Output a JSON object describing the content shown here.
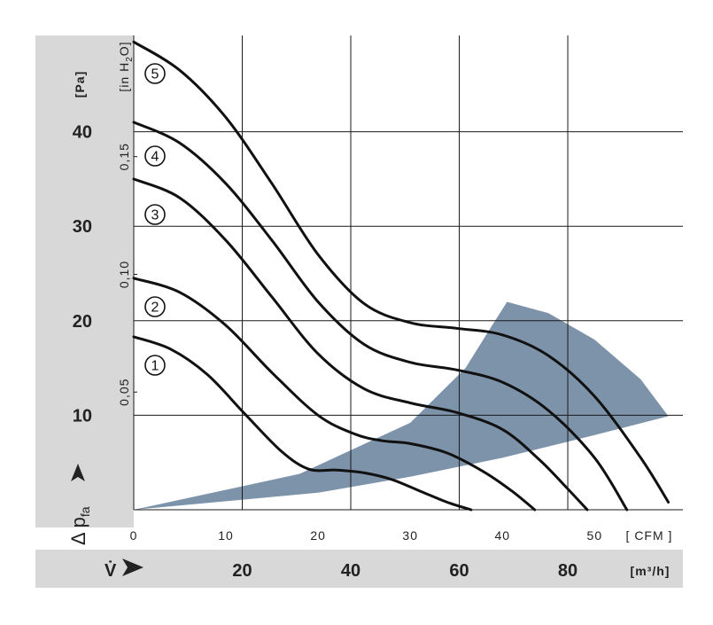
{
  "chart_data": {
    "type": "line",
    "title": "",
    "y_axis_pa": {
      "unit": "[Pa]",
      "ticks": [
        "10",
        "20",
        "30",
        "40"
      ],
      "range": [
        0,
        50
      ],
      "label_symbol": "Δ p",
      "label_subscript": "fa"
    },
    "y_axis_inh2o": {
      "unit_prefix": "[in H",
      "unit_sub": "2",
      "unit_suffix": "O]",
      "ticks": [
        "0,05",
        "0,10",
        "0,15"
      ]
    },
    "x_axis_cfm": {
      "unit": "[ CFM ]",
      "ticks": [
        "0",
        "10",
        "20",
        "30",
        "40",
        "50"
      ],
      "range": [
        0,
        59
      ]
    },
    "x_axis_m3h": {
      "symbol": "V̇",
      "unit": "[m³/h]",
      "ticks": [
        "20",
        "40",
        "60",
        "80"
      ],
      "range": [
        0,
        100
      ]
    },
    "grid": true,
    "shaded_region": {
      "color": "#7d93aa",
      "upper_boundary": [
        [
          0,
          0
        ],
        [
          18,
          3.8
        ],
        [
          30,
          9.2
        ],
        [
          36,
          15.0
        ],
        [
          39,
          19.7
        ],
        [
          40.5,
          22.0
        ],
        [
          45,
          20.8
        ],
        [
          50,
          18.0
        ],
        [
          55,
          13.8
        ],
        [
          58,
          9.9
        ]
      ],
      "lower_boundary": [
        [
          58,
          9.9
        ],
        [
          50,
          7.9
        ],
        [
          40,
          5.5
        ],
        [
          30,
          3.5
        ],
        [
          20,
          1.8
        ],
        [
          0,
          0
        ]
      ]
    },
    "series": [
      {
        "label": "1",
        "line_color": "#111111",
        "points": [
          [
            0,
            18.3
          ],
          [
            4,
            17.0
          ],
          [
            8,
            14.3
          ],
          [
            12,
            10.2
          ],
          [
            16,
            6.2
          ],
          [
            19,
            4.3
          ],
          [
            22,
            4.2
          ],
          [
            25,
            3.9
          ],
          [
            28,
            3.2
          ],
          [
            31,
            2.0
          ],
          [
            34,
            0.8
          ],
          [
            36.6,
            0.0
          ]
        ]
      },
      {
        "label": "2",
        "line_color": "#111111",
        "points": [
          [
            0,
            24.5
          ],
          [
            5,
            23.0
          ],
          [
            10,
            19.5
          ],
          [
            15,
            14.5
          ],
          [
            20,
            10.0
          ],
          [
            24,
            8.0
          ],
          [
            27,
            7.3
          ],
          [
            30,
            7.0
          ],
          [
            34,
            6.0
          ],
          [
            38,
            4.0
          ],
          [
            41,
            2.0
          ],
          [
            43.5,
            0.0
          ]
        ]
      },
      {
        "label": "3",
        "line_color": "#111111",
        "points": [
          [
            0,
            35.0
          ],
          [
            5,
            33.0
          ],
          [
            10,
            28.5
          ],
          [
            15,
            22.5
          ],
          [
            20,
            16.5
          ],
          [
            25,
            12.8
          ],
          [
            30,
            11.3
          ],
          [
            35,
            10.3
          ],
          [
            40,
            8.5
          ],
          [
            44,
            5.3
          ],
          [
            47,
            2.3
          ],
          [
            49.2,
            0.0
          ]
        ]
      },
      {
        "label": "4",
        "line_color": "#111111",
        "points": [
          [
            0,
            41.0
          ],
          [
            5,
            38.8
          ],
          [
            10,
            34.5
          ],
          [
            15,
            28.5
          ],
          [
            20,
            22.0
          ],
          [
            25,
            17.5
          ],
          [
            30,
            15.6
          ],
          [
            35,
            14.8
          ],
          [
            40,
            13.5
          ],
          [
            45,
            10.5
          ],
          [
            50,
            5.5
          ],
          [
            53.5,
            0.0
          ]
        ]
      },
      {
        "label": "5",
        "line_color": "#111111",
        "points": [
          [
            0,
            49.5
          ],
          [
            5,
            46.5
          ],
          [
            10,
            41.5
          ],
          [
            15,
            34.5
          ],
          [
            20,
            27.0
          ],
          [
            25,
            21.8
          ],
          [
            30,
            19.8
          ],
          [
            35,
            19.2
          ],
          [
            40,
            18.5
          ],
          [
            45,
            16.3
          ],
          [
            50,
            12.0
          ],
          [
            55,
            5.5
          ],
          [
            58,
            0.8
          ]
        ]
      }
    ]
  }
}
